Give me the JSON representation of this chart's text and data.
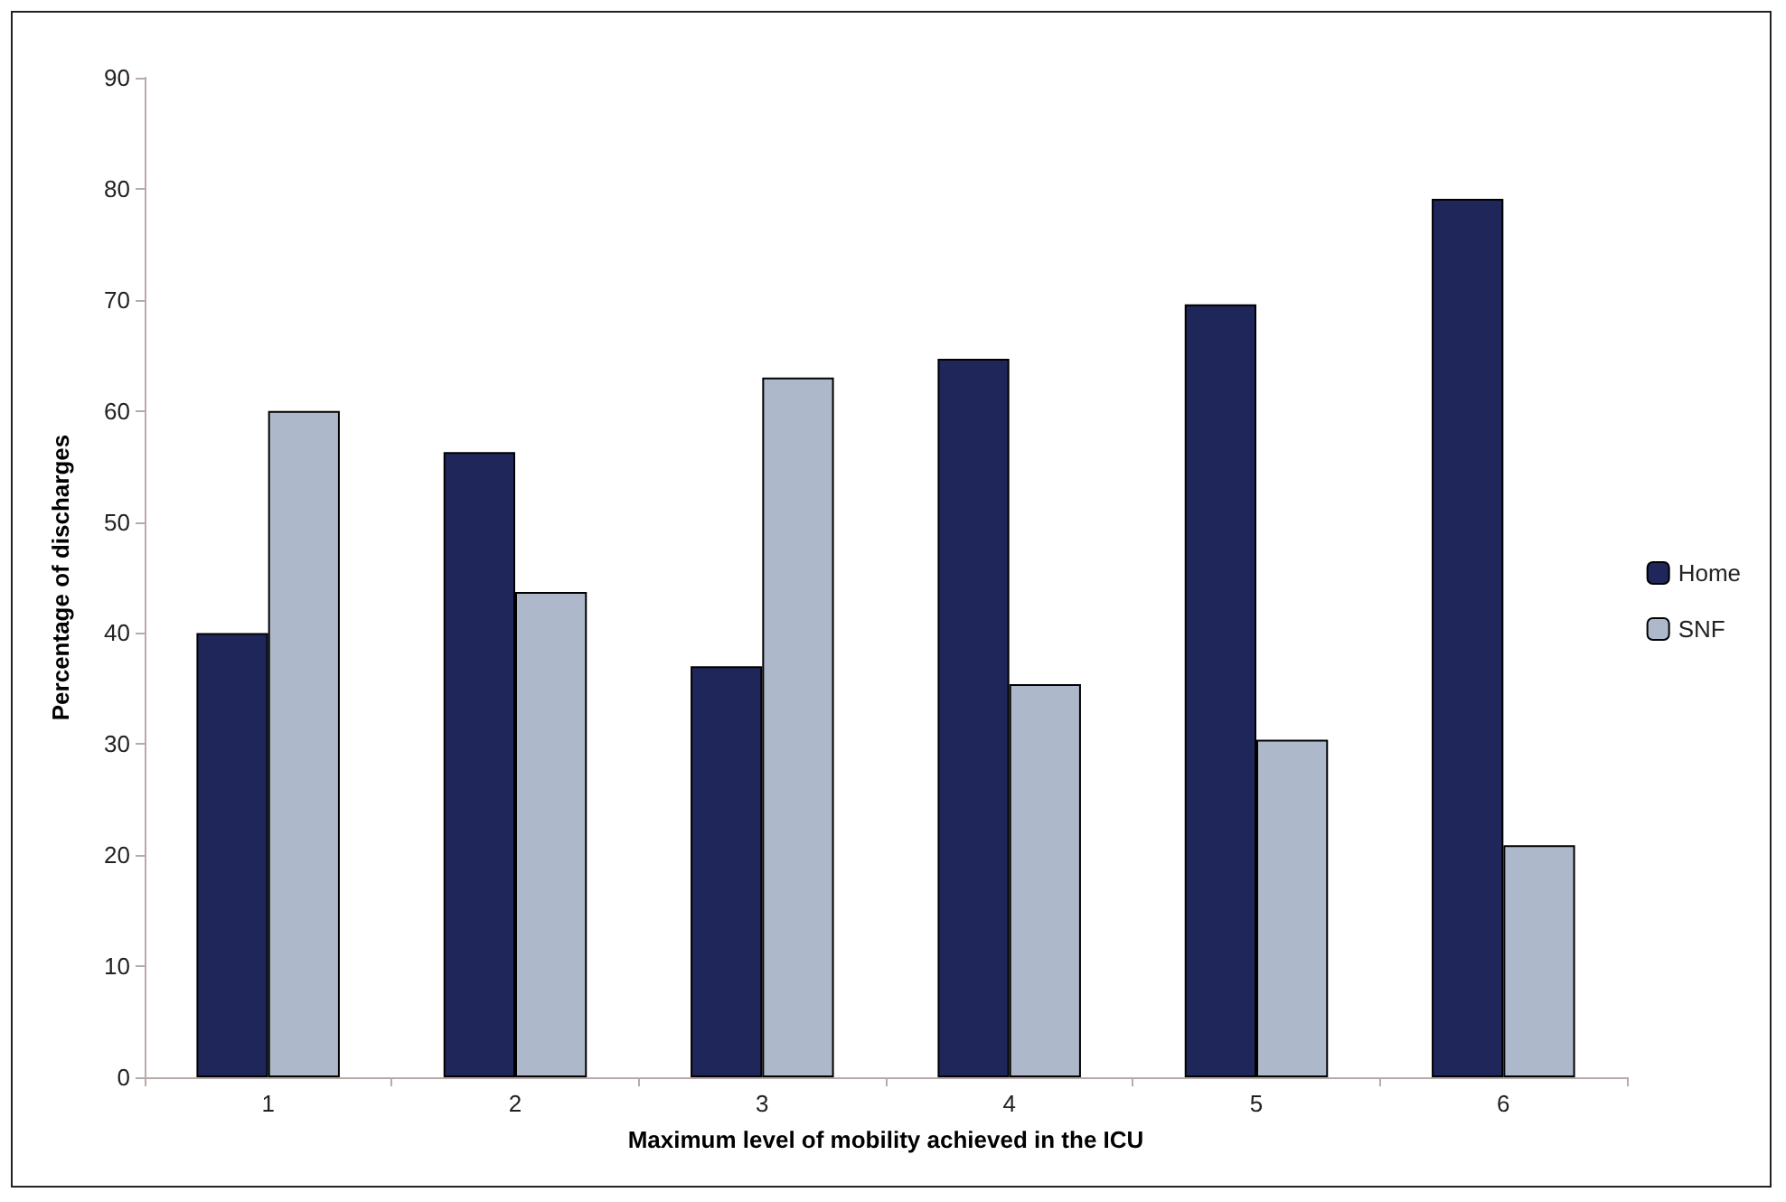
{
  "chart_data": {
    "type": "bar",
    "xlabel": "Maximum level of mobility achieved in the ICU",
    "ylabel": "Percentage of discharges",
    "categories": [
      "1",
      "2",
      "3",
      "4",
      "5",
      "6"
    ],
    "series": [
      {
        "name": "Home",
        "color": "#1f265a",
        "values": [
          40,
          56.3,
          37,
          64.7,
          69.6,
          79.1
        ]
      },
      {
        "name": "SNF",
        "color": "#adb9cb",
        "values": [
          60,
          43.7,
          63,
          35.4,
          30.4,
          20.9
        ]
      }
    ],
    "ylim": [
      0,
      90
    ],
    "yticks": [
      0,
      10,
      20,
      30,
      40,
      50,
      60,
      70,
      80,
      90
    ],
    "grid": false,
    "legend": "right"
  }
}
